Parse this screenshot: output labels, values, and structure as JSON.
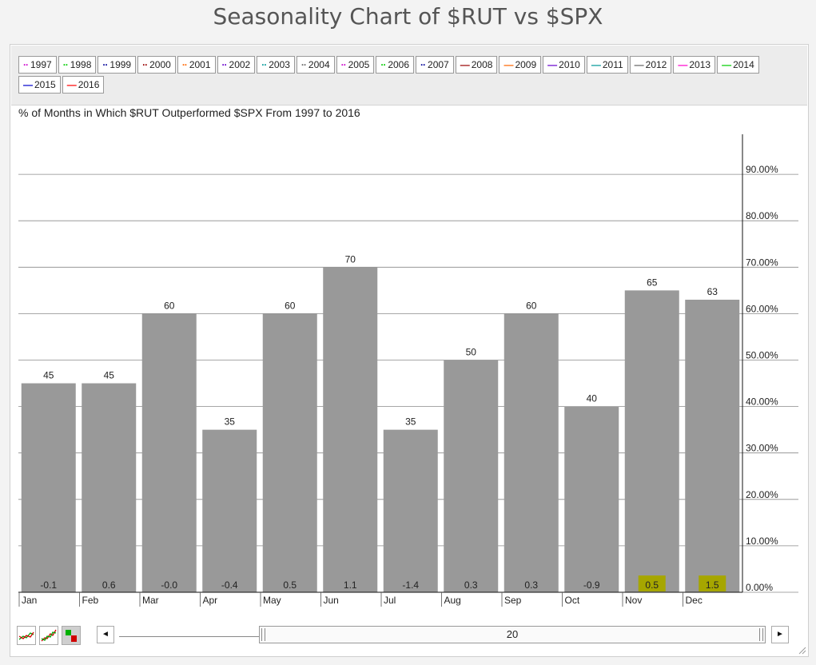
{
  "page": {
    "title": "Seasonality Chart of $RUT vs $SPX"
  },
  "legend": {
    "items": [
      {
        "label": "1997",
        "color": "#cc00cc",
        "style": "dotted"
      },
      {
        "label": "1998",
        "color": "#00cc00",
        "style": "dotted"
      },
      {
        "label": "1999",
        "color": "#000099",
        "style": "dotted"
      },
      {
        "label": "2000",
        "color": "#990000",
        "style": "dotted"
      },
      {
        "label": "2001",
        "color": "#ff6600",
        "style": "dotted"
      },
      {
        "label": "2002",
        "color": "#6600cc",
        "style": "dotted"
      },
      {
        "label": "2003",
        "color": "#009999",
        "style": "dotted"
      },
      {
        "label": "2004",
        "color": "#666666",
        "style": "dotted"
      },
      {
        "label": "2005",
        "color": "#cc00cc",
        "style": "dotted"
      },
      {
        "label": "2006",
        "color": "#00cc00",
        "style": "dotted"
      },
      {
        "label": "2007",
        "color": "#000099",
        "style": "dotted"
      },
      {
        "label": "2008",
        "color": "#990000",
        "style": "solid"
      },
      {
        "label": "2009",
        "color": "#ff6600",
        "style": "solid"
      },
      {
        "label": "2010",
        "color": "#6600cc",
        "style": "solid"
      },
      {
        "label": "2011",
        "color": "#009999",
        "style": "solid"
      },
      {
        "label": "2012",
        "color": "#666666",
        "style": "solid"
      },
      {
        "label": "2013",
        "color": "#ff00cc",
        "style": "solid"
      },
      {
        "label": "2014",
        "color": "#00cc00",
        "style": "solid"
      },
      {
        "label": "2015",
        "color": "#0000cc",
        "style": "solid"
      },
      {
        "label": "2016",
        "color": "#ff0000",
        "style": "solid"
      }
    ]
  },
  "chart_data": {
    "type": "bar",
    "title": "% of Months in Which $RUT Outperformed $SPX From 1997 to 2016",
    "categories": [
      "Jan",
      "Feb",
      "Mar",
      "Apr",
      "May",
      "Jun",
      "Jul",
      "Aug",
      "Sep",
      "Oct",
      "Nov",
      "Dec"
    ],
    "values": [
      45,
      45,
      60,
      35,
      60,
      70,
      35,
      50,
      60,
      40,
      65,
      63
    ],
    "value_labels": [
      "45",
      "45",
      "60",
      "35",
      "60",
      "70",
      "35",
      "50",
      "60",
      "40",
      "65",
      "63"
    ],
    "bottom_labels": [
      "-0.1",
      "0.6",
      "-0.0",
      "-0.4",
      "0.5",
      "1.1",
      "-1.4",
      "0.3",
      "0.3",
      "-0.9",
      "0.5",
      "1.5"
    ],
    "highlighted_bottom_labels": [
      "Nov",
      "Dec"
    ],
    "bar_color": "#999999",
    "highlight_color": "#a6a600",
    "ylim": [
      0,
      100
    ],
    "yticks": [
      0,
      10,
      20,
      30,
      40,
      50,
      60,
      70,
      80,
      90
    ],
    "ytick_labels": [
      "0.00%",
      "10.00%",
      "20.00%",
      "30.00%",
      "40.00%",
      "50.00%",
      "60.00%",
      "70.00%",
      "80.00%",
      "90.00%"
    ],
    "y_axis_position": "right",
    "grid": true
  },
  "toolbar": {
    "icons": [
      "line-chart-icon",
      "candle-chart-icon",
      "bar-chart-icon"
    ],
    "scroll_value": "20",
    "prev_symbol": "◄",
    "next_symbol": "►"
  }
}
